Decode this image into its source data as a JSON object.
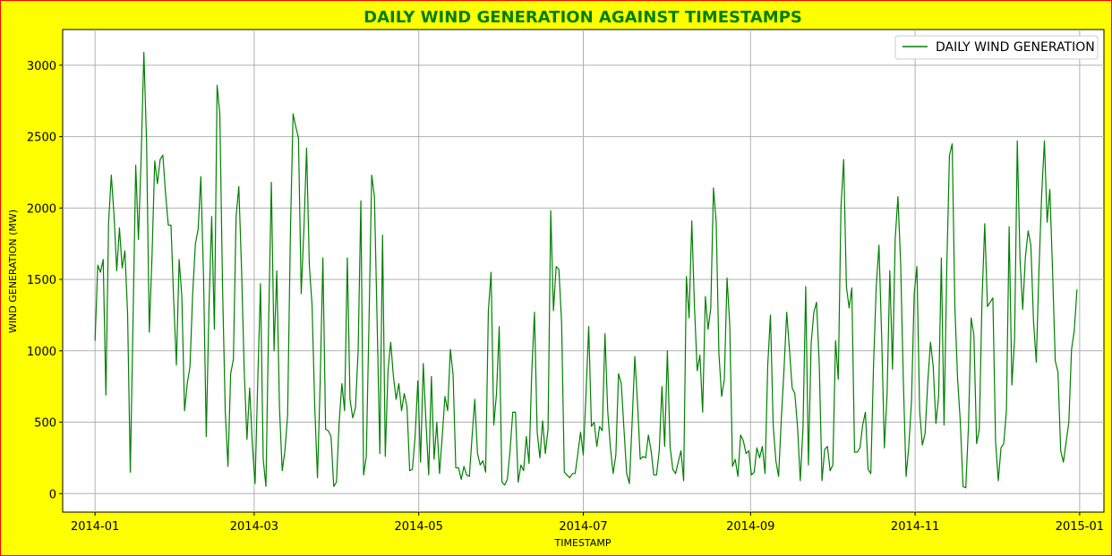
{
  "chart_data": {
    "type": "line",
    "title": "DAILY WIND GENERATION AGAINST TIMESTAMPS",
    "xlabel": "TIMESTAMP",
    "ylabel": "WIND GENERATION (MW)",
    "x_start": "2014-01-01",
    "x_step": "1 day",
    "xlim": [
      "2013-12-20",
      "2015-01-10"
    ],
    "ylim": [
      -130,
      3250
    ],
    "x_ticks": [
      "2014-01",
      "2014-03",
      "2014-05",
      "2014-07",
      "2014-09",
      "2014-11",
      "2015-01"
    ],
    "y_ticks": [
      0,
      500,
      1000,
      1500,
      2000,
      2500,
      3000
    ],
    "grid": true,
    "legend_position": "top-right",
    "colors": {
      "background": "#ffff00",
      "border": "#ff0000",
      "title": "#008000",
      "line": "#008000",
      "grid": "#b0b0b0"
    },
    "series": [
      {
        "name": "DAILY WIND GENERATION",
        "values": [
          1070,
          1600,
          1550,
          1640,
          690,
          1900,
          2230,
          1950,
          1560,
          1860,
          1580,
          1700,
          1260,
          150,
          1200,
          2300,
          1780,
          2360,
          3090,
          2460,
          1130,
          1660,
          2330,
          2170,
          2340,
          2370,
          2100,
          1880,
          1880,
          1350,
          900,
          1640,
          1380,
          580,
          770,
          890,
          1400,
          1750,
          1850,
          2220,
          1520,
          400,
          1300,
          1940,
          1150,
          2860,
          2660,
          1450,
          580,
          190,
          840,
          940,
          1940,
          2150,
          1580,
          860,
          380,
          740,
          340,
          70,
          800,
          1470,
          240,
          50,
          1200,
          2180,
          1000,
          1560,
          600,
          160,
          300,
          550,
          1800,
          2660,
          2570,
          2490,
          1400,
          1850,
          2420,
          1600,
          1320,
          610,
          110,
          780,
          1650,
          450,
          440,
          400,
          50,
          80,
          500,
          770,
          580,
          1650,
          660,
          530,
          600,
          1000,
          2050,
          130,
          260,
          1200,
          2230,
          2080,
          1200,
          280,
          1810,
          260,
          860,
          1060,
          820,
          660,
          770,
          580,
          700,
          610,
          160,
          170,
          400,
          790,
          220,
          910,
          500,
          130,
          820,
          240,
          500,
          140,
          400,
          680,
          580,
          1010,
          830,
          180,
          180,
          100,
          190,
          130,
          120,
          400,
          660,
          280,
          200,
          230,
          150,
          1280,
          1550,
          480,
          700,
          1170,
          80,
          60,
          100,
          300,
          570,
          570,
          80,
          200,
          160,
          400,
          210,
          850,
          1270,
          430,
          250,
          510,
          280,
          450,
          1980,
          1280,
          1590,
          1570,
          1200,
          150,
          130,
          110,
          140,
          140,
          280,
          430,
          270,
          700,
          1170,
          470,
          500,
          330,
          470,
          440,
          1120,
          580,
          320,
          140,
          270,
          840,
          770,
          450,
          140,
          70,
          500,
          960,
          630,
          240,
          260,
          250,
          410,
          300,
          130,
          130,
          300,
          750,
          330,
          1000,
          330,
          170,
          140,
          220,
          300,
          90,
          1520,
          1230,
          1910,
          1300,
          860,
          970,
          570,
          1380,
          1150,
          1300,
          2140,
          1900,
          980,
          680,
          800,
          1510,
          1180,
          190,
          240,
          120,
          410,
          370,
          280,
          300,
          130,
          150,
          320,
          250,
          330,
          140,
          900,
          1250,
          480,
          230,
          120,
          520,
          870,
          1270,
          1010,
          740,
          700,
          460,
          90,
          460,
          1450,
          200,
          1050,
          1270,
          1340,
          900,
          90,
          310,
          330,
          160,
          200,
          1070,
          800,
          2010,
          2340,
          1450,
          1300,
          1440,
          290,
          290,
          320,
          480,
          570,
          170,
          140,
          900,
          1450,
          1740,
          1100,
          320,
          700,
          1560,
          870,
          1790,
          2080,
          1610,
          780,
          120,
          330,
          650,
          1400,
          1590,
          580,
          340,
          420,
          780,
          1060,
          890,
          490,
          680,
          1650,
          480,
          1580,
          2370,
          2450,
          1300,
          800,
          500,
          50,
          40,
          470,
          1230,
          1110,
          350,
          450,
          1360,
          1890,
          1310,
          1340,
          1370,
          360,
          90,
          320,
          350,
          580,
          1870,
          760,
          1080,
          2470,
          1640,
          1290,
          1660,
          1840,
          1740,
          1200,
          920,
          1570,
          2100,
          2470,
          1900,
          2130,
          1560,
          930,
          850,
          300,
          220,
          360,
          500,
          1010,
          1140,
          1430
        ]
      }
    ]
  }
}
